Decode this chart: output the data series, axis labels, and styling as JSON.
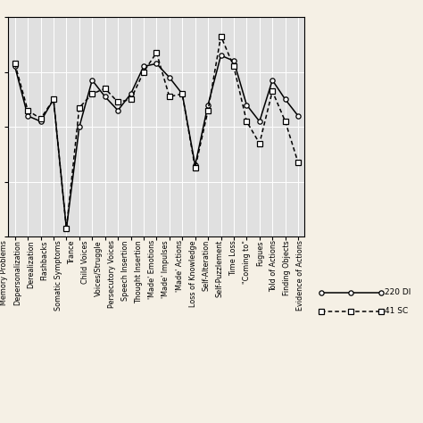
{
  "categories": [
    "Memory Problems",
    "Depersonalization",
    "Derealization",
    "Flashbacks",
    "Somatic Symptoms",
    "Trance",
    "Child Voices",
    "Voices/Struggle",
    "Persecutory Voices",
    "Speech Insertion",
    "Thought Insertion",
    "'Made' Emotions",
    "'Made' Impulses",
    "'Made' Actions",
    "Loss of Knowledge",
    "Self-Alteration",
    "Self-Puzzlement",
    "Time Loss",
    "\"Coming to\"",
    "Fugues",
    "Told of Actions",
    "Finding Objects",
    "Evidence of Actions"
  ],
  "series_220": [
    3.1,
    2.2,
    2.1,
    2.5,
    0.15,
    2.0,
    2.85,
    2.55,
    2.3,
    2.6,
    3.1,
    3.15,
    2.9,
    2.6,
    1.3,
    2.4,
    3.3,
    3.2,
    2.4,
    2.1,
    2.85,
    2.5,
    2.2
  ],
  "series_41": [
    3.15,
    2.3,
    2.15,
    2.5,
    0.15,
    2.35,
    2.6,
    2.7,
    2.45,
    2.5,
    3.0,
    3.35,
    2.55,
    2.6,
    1.25,
    2.3,
    3.65,
    3.1,
    2.1,
    1.7,
    2.65,
    2.1,
    1.35
  ],
  "background_color": "#f5f0e5",
  "plot_bg_color": "#e0e0e0",
  "grid_color": "#ffffff",
  "line_color": "#000000",
  "legend_220": "220 DI",
  "legend_41": "41 SC",
  "ylim": [
    0,
    4
  ],
  "ytick_positions": [
    0,
    1,
    2,
    3,
    4
  ],
  "label_fontsize": 5.8,
  "tick_fontsize": 6.5
}
